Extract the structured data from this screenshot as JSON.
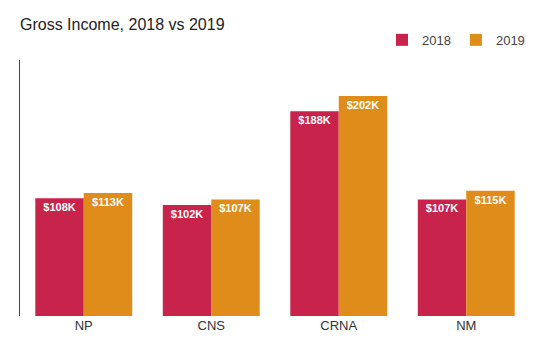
{
  "chart_data": {
    "type": "bar",
    "title": "Gross Income, 2018 vs 2019",
    "categories": [
      "NP",
      "CNS",
      "CRNA",
      "NM"
    ],
    "series": [
      {
        "name": "2018",
        "color": "#C8234A",
        "values": [
          108,
          102,
          188,
          107
        ],
        "value_labels": [
          "$108K",
          "$102K",
          "$188K",
          "$107K"
        ]
      },
      {
        "name": "2019",
        "color": "#E08C1A",
        "values": [
          113,
          107,
          202,
          115
        ],
        "value_labels": [
          "$113K",
          "$107K",
          "$202K",
          "$115K"
        ]
      }
    ],
    "ylim": [
      0,
      235
    ],
    "grid": false,
    "legend": "upper right",
    "data_labels": true,
    "tick_labels": "x"
  }
}
